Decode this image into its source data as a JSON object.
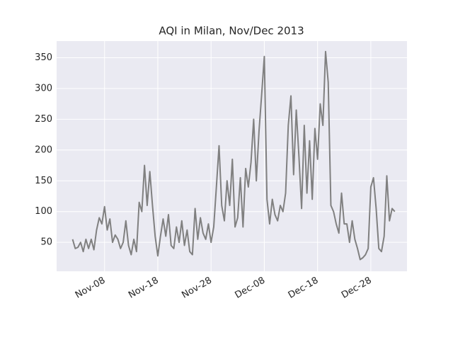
{
  "chart_data": {
    "type": "line",
    "title": "AQI in Milan, Nov/Dec 2013",
    "x": [
      "2013-11-02T00:00",
      "2013-11-02T12:00",
      "2013-11-03T00:00",
      "2013-11-03T12:00",
      "2013-11-04T00:00",
      "2013-11-04T12:00",
      "2013-11-05T00:00",
      "2013-11-05T12:00",
      "2013-11-06T00:00",
      "2013-11-06T12:00",
      "2013-11-07T00:00",
      "2013-11-07T12:00",
      "2013-11-08T00:00",
      "2013-11-08T12:00",
      "2013-11-09T00:00",
      "2013-11-09T12:00",
      "2013-11-10T00:00",
      "2013-11-10T12:00",
      "2013-11-11T00:00",
      "2013-11-11T12:00",
      "2013-11-12T00:00",
      "2013-11-12T12:00",
      "2013-11-13T00:00",
      "2013-11-13T12:00",
      "2013-11-14T00:00",
      "2013-11-14T12:00",
      "2013-11-15T00:00",
      "2013-11-15T12:00",
      "2013-11-16T00:00",
      "2013-11-16T12:00",
      "2013-11-17T00:00",
      "2013-11-17T12:00",
      "2013-11-18T00:00",
      "2013-11-18T12:00",
      "2013-11-19T00:00",
      "2013-11-19T12:00",
      "2013-11-20T00:00",
      "2013-11-20T12:00",
      "2013-11-21T00:00",
      "2013-11-21T12:00",
      "2013-11-22T00:00",
      "2013-11-22T12:00",
      "2013-11-23T00:00",
      "2013-11-23T12:00",
      "2013-11-24T00:00",
      "2013-11-24T12:00",
      "2013-11-25T00:00",
      "2013-11-25T12:00",
      "2013-11-26T00:00",
      "2013-11-26T12:00",
      "2013-11-27T00:00",
      "2013-11-27T12:00",
      "2013-11-28T00:00",
      "2013-11-28T12:00",
      "2013-11-29T00:00",
      "2013-11-29T12:00",
      "2013-11-30T00:00",
      "2013-11-30T12:00",
      "2013-12-01T00:00",
      "2013-12-01T12:00",
      "2013-12-02T00:00",
      "2013-12-02T12:00",
      "2013-12-03T00:00",
      "2013-12-03T12:00",
      "2013-12-04T00:00",
      "2013-12-04T12:00",
      "2013-12-05T00:00",
      "2013-12-05T12:00",
      "2013-12-06T00:00",
      "2013-12-06T12:00",
      "2013-12-07T00:00",
      "2013-12-07T12:00",
      "2013-12-08T00:00",
      "2013-12-08T12:00",
      "2013-12-09T00:00",
      "2013-12-09T12:00",
      "2013-12-10T00:00",
      "2013-12-10T12:00",
      "2013-12-11T00:00",
      "2013-12-11T12:00",
      "2013-12-12T00:00",
      "2013-12-12T12:00",
      "2013-12-13T00:00",
      "2013-12-13T12:00",
      "2013-12-14T00:00",
      "2013-12-14T12:00",
      "2013-12-15T00:00",
      "2013-12-15T12:00",
      "2013-12-16T00:00",
      "2013-12-16T12:00",
      "2013-12-17T00:00",
      "2013-12-17T12:00",
      "2013-12-18T00:00",
      "2013-12-18T12:00",
      "2013-12-19T00:00",
      "2013-12-19T12:00",
      "2013-12-20T00:00",
      "2013-12-20T12:00",
      "2013-12-21T00:00",
      "2013-12-21T12:00",
      "2013-12-22T00:00",
      "2013-12-22T12:00",
      "2013-12-23T00:00",
      "2013-12-23T12:00",
      "2013-12-24T00:00",
      "2013-12-24T12:00",
      "2013-12-25T00:00",
      "2013-12-25T12:00",
      "2013-12-26T00:00",
      "2013-12-26T12:00",
      "2013-12-27T00:00",
      "2013-12-27T12:00",
      "2013-12-28T00:00",
      "2013-12-28T12:00",
      "2013-12-29T00:00",
      "2013-12-29T12:00",
      "2013-12-30T00:00",
      "2013-12-30T12:00",
      "2013-12-31T00:00",
      "2013-12-31T12:00",
      "2014-01-01T00:00",
      "2014-01-01T12:00"
    ],
    "values": [
      55,
      40,
      42,
      50,
      35,
      55,
      40,
      55,
      38,
      70,
      90,
      80,
      108,
      70,
      88,
      50,
      62,
      55,
      40,
      50,
      85,
      45,
      30,
      55,
      35,
      115,
      100,
      175,
      110,
      165,
      110,
      60,
      28,
      60,
      88,
      60,
      95,
      45,
      40,
      75,
      50,
      85,
      45,
      70,
      35,
      30,
      105,
      55,
      90,
      65,
      55,
      80,
      50,
      75,
      140,
      207,
      110,
      85,
      150,
      110,
      185,
      75,
      90,
      155,
      75,
      170,
      140,
      180,
      250,
      150,
      230,
      290,
      352,
      120,
      80,
      120,
      95,
      85,
      110,
      100,
      130,
      240,
      288,
      160,
      265,
      190,
      105,
      240,
      130,
      215,
      120,
      235,
      185,
      275,
      240,
      360,
      310,
      110,
      100,
      80,
      65,
      130,
      80,
      80,
      50,
      85,
      55,
      40,
      22,
      25,
      30,
      40,
      140,
      155,
      105,
      40,
      35,
      60,
      158,
      85,
      105,
      100
    ],
    "color": "#808080",
    "xlim": [
      "2013-10-30T00:00",
      "2014-01-03T19:00"
    ],
    "xticks": [
      {
        "value": "2013-11-08T00:00",
        "label": "Nov-08"
      },
      {
        "value": "2013-11-18T00:00",
        "label": "Nov-18"
      },
      {
        "value": "2013-11-28T00:00",
        "label": "Nov-28"
      },
      {
        "value": "2013-12-08T00:00",
        "label": "Dec-08"
      },
      {
        "value": "2013-12-18T00:00",
        "label": "Dec-18"
      },
      {
        "value": "2013-12-28T00:00",
        "label": "Dec-28"
      }
    ],
    "ylim": [
      3,
      377
    ],
    "yticks": [
      50,
      100,
      150,
      200,
      250,
      300,
      350
    ],
    "grid": true
  }
}
